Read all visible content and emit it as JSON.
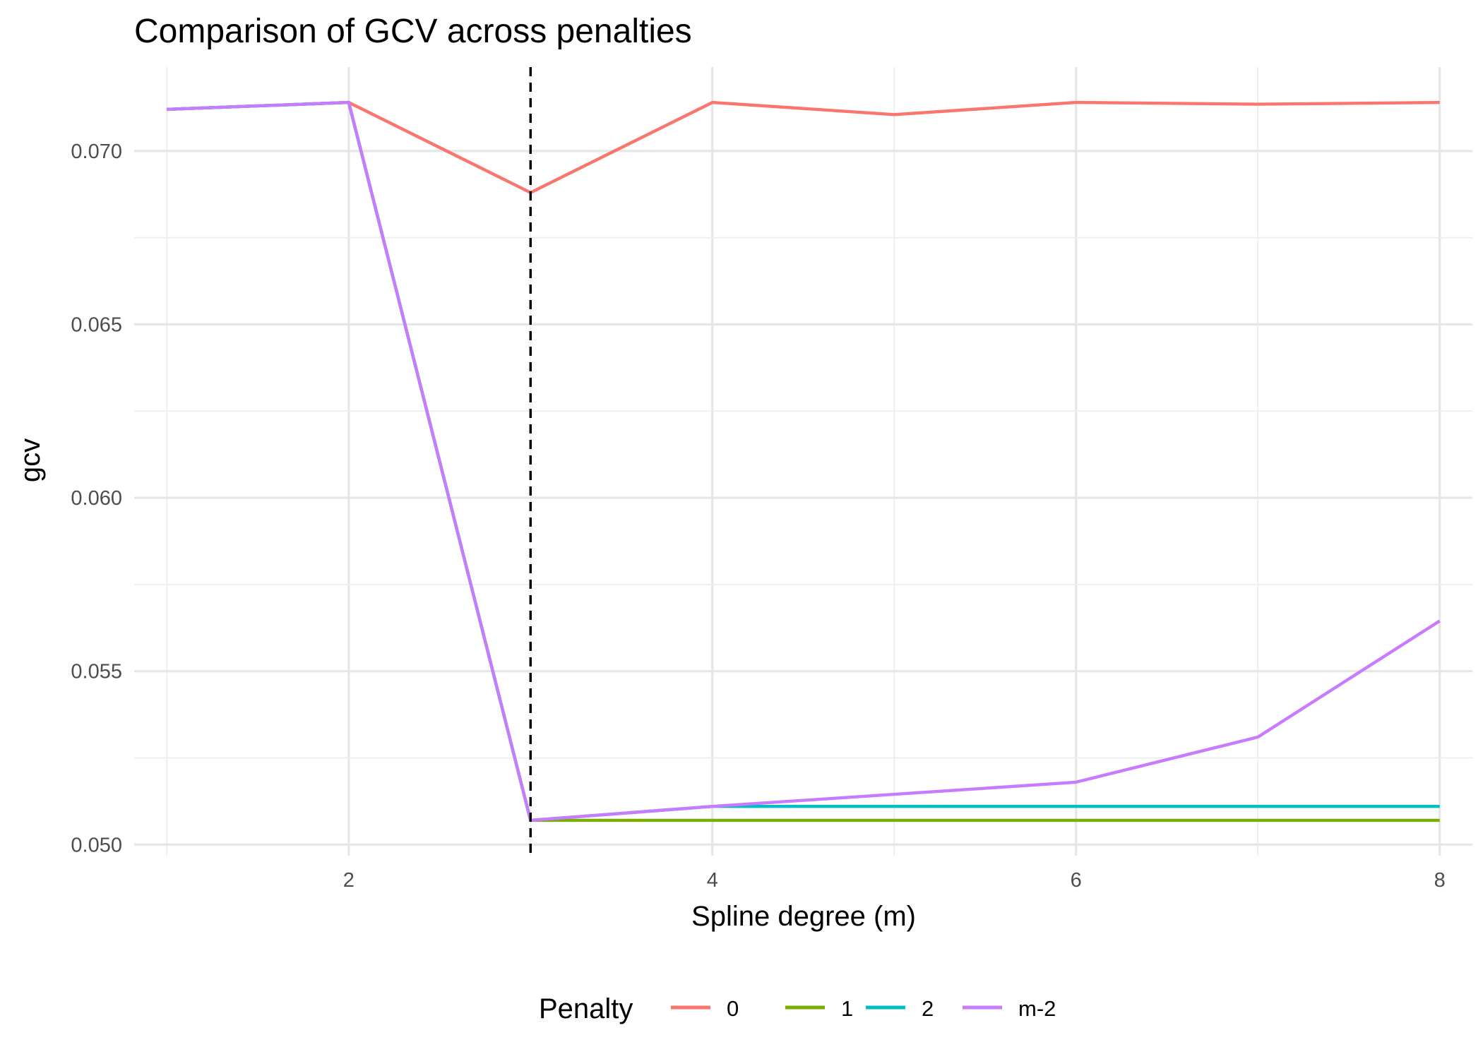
{
  "chart_data": {
    "type": "line",
    "title": "Comparison of GCV across penalties",
    "xlabel": "Spline degree (m)",
    "ylabel": "gcv",
    "xlim": [
      0.82,
      8.18
    ],
    "ylim": [
      0.04968,
      0.07242
    ],
    "x_ticks": [
      2,
      4,
      6,
      8
    ],
    "x_tick_labels": [
      "2",
      "4",
      "6",
      "8"
    ],
    "y_ticks": [
      0.05,
      0.055,
      0.06,
      0.065,
      0.07
    ],
    "y_tick_labels": [
      "0.050",
      "0.055",
      "0.060",
      "0.065",
      "0.070"
    ],
    "grid": true,
    "legend_position": "bottom",
    "legend_title": "Penalty",
    "reference_line": {
      "x": 3,
      "style": "dashed",
      "color": "#000000"
    },
    "x": [
      1,
      2,
      3,
      4,
      5,
      6,
      7,
      8
    ],
    "series": [
      {
        "name": "0",
        "color": "#F8766D",
        "x": [
          1,
          2,
          3,
          4,
          5,
          6,
          7,
          8
        ],
        "values": [
          0.0712,
          0.0714,
          0.0688,
          0.0714,
          0.07105,
          0.0714,
          0.07135,
          0.0714
        ]
      },
      {
        "name": "1",
        "color": "#7CAE00",
        "x": [
          1,
          2,
          3,
          4,
          5,
          6,
          7,
          8
        ],
        "values": [
          0.0712,
          0.0714,
          0.0507,
          0.0507,
          0.0507,
          0.0507,
          0.0507,
          0.0507
        ]
      },
      {
        "name": "2",
        "color": "#00BFC4",
        "x": [
          1,
          2,
          3,
          4,
          5,
          6,
          7,
          8
        ],
        "values": [
          0.0712,
          0.0714,
          0.0507,
          0.0511,
          0.0511,
          0.0511,
          0.0511,
          0.0511
        ]
      },
      {
        "name": "m-2",
        "color": "#C77CFF",
        "x": [
          1,
          2,
          3,
          4,
          5,
          6,
          7,
          8
        ],
        "values": [
          0.0712,
          0.0714,
          0.0507,
          0.0511,
          0.05145,
          0.0518,
          0.0531,
          0.05645
        ]
      }
    ]
  }
}
